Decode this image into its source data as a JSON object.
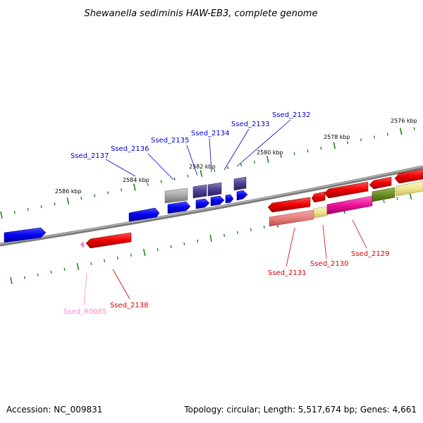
{
  "title": "Shewanella sediminis HAW-EB3, complete genome",
  "footer": {
    "accession": "Accession: NC_009831",
    "summary": "Topology: circular; Length: 5,517,674 bp; Genes: 4,661"
  },
  "colors": {
    "backbone": "#7a7a7a",
    "ticks": "#1a8a1a",
    "label_blue": "#0000cc",
    "label_red": "#dd0000",
    "label_pink": "#ff88cc"
  },
  "scale_ticks": [
    "2586 kbp",
    "2584 kbp",
    "2582 kbp",
    "2580 kbp",
    "2578 kbp",
    "2576 kbp"
  ],
  "gene_labels": [
    {
      "text": "Ssed_2137",
      "color": "blue"
    },
    {
      "text": "Ssed_2136",
      "color": "blue"
    },
    {
      "text": "Ssed_2135",
      "color": "blue"
    },
    {
      "text": "Ssed_2134",
      "color": "blue"
    },
    {
      "text": "Ssed_2133",
      "color": "blue"
    },
    {
      "text": "Ssed_2132",
      "color": "blue"
    },
    {
      "text": "Ssed_2131",
      "color": "red"
    },
    {
      "text": "Ssed_2130",
      "color": "red"
    },
    {
      "text": "Ssed_2129",
      "color": "red"
    },
    {
      "text": "Ssed_2138",
      "color": "red"
    },
    {
      "text": "Ssed_R0085",
      "color": "pink"
    }
  ]
}
